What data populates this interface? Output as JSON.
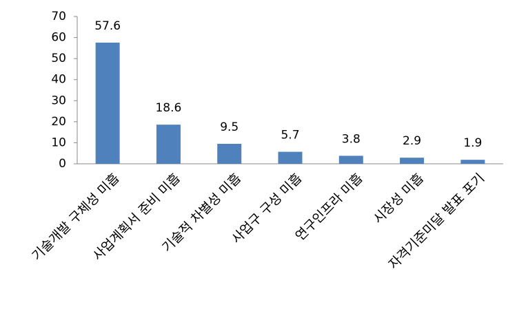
{
  "chart_data": {
    "type": "bar",
    "categories": [
      "기술개발 구체성 미흡",
      "사업계획서 준비 미흡",
      "기술적 차별성 미흡",
      "사업구 구성 미흡",
      "연구인프라 미흡",
      "시장성 미흡",
      "자격기준미달 발표 포기"
    ],
    "values": [
      57.6,
      18.6,
      9.5,
      5.7,
      3.8,
      2.9,
      1.9
    ],
    "color": "#4f81bd",
    "ylim": [
      0,
      70
    ],
    "yticks": [
      0,
      10,
      20,
      30,
      40,
      50,
      60,
      70
    ],
    "grid": false
  }
}
